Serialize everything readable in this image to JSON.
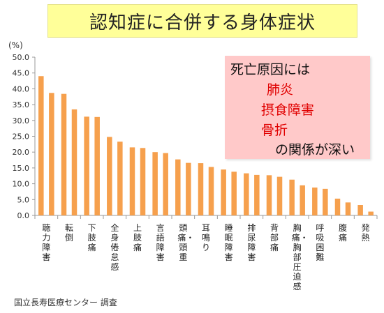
{
  "title": "認知症に合併する身体症状",
  "unit": "(%)",
  "source": "国立長寿医療センター 調査",
  "note": {
    "lines": [
      "死亡原因には",
      "肺炎",
      "摂食障害",
      "骨折",
      "の関係が深い"
    ],
    "text_color": "#111111",
    "highlight_color": "#e00000",
    "background": "#ffc9c9"
  },
  "colors": {
    "bar": "#f6a04d",
    "title_bg": "#ffff99"
  },
  "chart_data": {
    "type": "bar",
    "title": "認知症に合併する身体症状",
    "ylabel": "(%)",
    "ylim": [
      0,
      50
    ],
    "yticks": [
      "0.0",
      "5.0",
      "10.0",
      "15.0",
      "20.0",
      "25.0",
      "30.0",
      "35.0",
      "40.0",
      "45.0",
      "50.0"
    ],
    "grid": false,
    "groups": [
      {
        "label": "聴力障害",
        "values": [
          44.0,
          38.7
        ]
      },
      {
        "label": "転倒",
        "values": [
          38.4,
          33.5
        ]
      },
      {
        "label": "下肢痛",
        "values": [
          31.2,
          31.1
        ]
      },
      {
        "label": "全身倦怠感",
        "values": [
          24.8,
          23.3
        ]
      },
      {
        "label": "上肢痛",
        "values": [
          21.5,
          21.3
        ]
      },
      {
        "label": "言語障害",
        "values": [
          20.0,
          19.7
        ]
      },
      {
        "label": "頭痛・頭重",
        "values": [
          17.7,
          16.6
        ]
      },
      {
        "label": "耳鳴り",
        "values": [
          16.5,
          15.3
        ]
      },
      {
        "label": "睡眠障害",
        "values": [
          14.5,
          13.8
        ]
      },
      {
        "label": "排尿障害",
        "values": [
          13.3,
          12.8
        ]
      },
      {
        "label": "背部痛",
        "values": [
          12.7,
          12.2
        ]
      },
      {
        "label": "胸痛・胸部圧迫感",
        "values": [
          11.3,
          9.5
        ]
      },
      {
        "label": "呼吸困難",
        "values": [
          8.8,
          8.4
        ]
      },
      {
        "label": "腹痛",
        "values": [
          5.3,
          4.1
        ]
      },
      {
        "label": "発熱",
        "values": [
          3.3,
          1.2
        ]
      }
    ]
  }
}
